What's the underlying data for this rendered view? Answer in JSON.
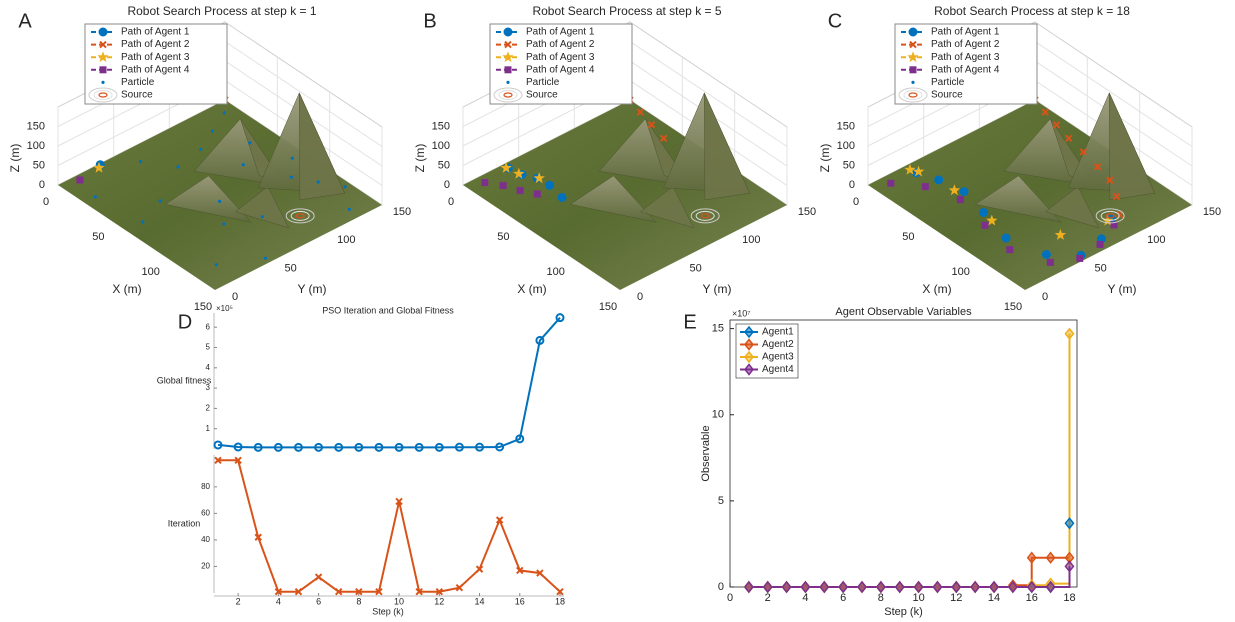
{
  "chart_data": [
    {
      "type": "scatter3d",
      "label": "A",
      "title": "Robot Search Process at step k = 1",
      "xlabel": "X (m)",
      "ylabel": "Y (m)",
      "zlabel": "Z (m)",
      "xlim": [
        0,
        150
      ],
      "ylim": [
        0,
        150
      ],
      "zlim": [
        0,
        200
      ],
      "xticks": [
        0,
        50,
        100,
        150
      ],
      "yticks": [
        0,
        50,
        100,
        150
      ],
      "zticks": [
        0,
        50,
        100,
        150
      ],
      "series": [
        {
          "name": "Path of Agent 1",
          "color": "#0072BD",
          "marker": "circle",
          "x": [
            1
          ],
          "y": [
            37
          ]
        },
        {
          "name": "Path of Agent 2",
          "color": "#D95319",
          "marker": "x",
          "x": [
            0
          ],
          "y": [
            150
          ]
        },
        {
          "name": "Path of Agent 3",
          "color": "#EDB120",
          "marker": "star",
          "x": [
            3
          ],
          "y": [
            34
          ]
        },
        {
          "name": "Path of Agent 4",
          "color": "#7E2F8E",
          "marker": "square",
          "x": [
            5
          ],
          "y": [
            15
          ]
        },
        {
          "name": "Particle",
          "color": "#0072BD",
          "marker": "dot",
          "x": [
            10,
            20,
            30,
            45,
            60,
            75,
            90,
            105,
            120,
            140,
            15,
            35,
            55,
            80,
            100,
            130,
            145,
            25,
            65,
            110
          ],
          "y": [
            140,
            120,
            100,
            130,
            110,
            140,
            125,
            135,
            145,
            130,
            60,
            75,
            40,
            70,
            55,
            20,
            50,
            10,
            15,
            80
          ]
        },
        {
          "name": "Source",
          "color": "#D95319",
          "marker": "source",
          "x": [
            125
          ],
          "y": [
            100
          ]
        }
      ]
    },
    {
      "type": "scatter3d",
      "label": "B",
      "title": "Robot Search Process at step k = 5",
      "xlabel": "X (m)",
      "ylabel": "Y (m)",
      "zlabel": "Z (m)",
      "xlim": [
        0,
        150
      ],
      "ylim": [
        0,
        150
      ],
      "zlim": [
        0,
        200
      ],
      "xticks": [
        0,
        50,
        100,
        150
      ],
      "yticks": [
        0,
        50,
        100,
        150
      ],
      "zticks": [
        0,
        50,
        100,
        150
      ],
      "series": [
        {
          "name": "Path of Agent 1",
          "color": "#0072BD",
          "marker": "circle",
          "x": [
            5,
            16,
            25,
            36,
            51
          ],
          "y": [
            36,
            38,
            43,
            44,
            41
          ]
        },
        {
          "name": "Path of Agent 2",
          "color": "#D95319",
          "marker": "x",
          "x": [
            0,
            14,
            29,
            45
          ],
          "y": [
            150,
            146,
            142,
            138
          ]
        },
        {
          "name": "Path of Agent 3",
          "color": "#EDB120",
          "marker": "star",
          "x": [
            4,
            14,
            26
          ],
          "y": [
            35,
            37,
            44
          ]
        },
        {
          "name": "Path of Agent 4",
          "color": "#7E2F8E",
          "marker": "square",
          "x": [
            7,
            17,
            28,
            38
          ],
          "y": [
            13,
            20,
            25,
            31
          ]
        },
        {
          "name": "Particle",
          "color": "#0072BD",
          "marker": "dot",
          "x": [],
          "y": []
        },
        {
          "name": "Source",
          "color": "#D95319",
          "marker": "source",
          "x": [
            125
          ],
          "y": [
            100
          ]
        }
      ]
    },
    {
      "type": "scatter3d",
      "label": "C",
      "title": "Robot Search Process at step k = 18",
      "xlabel": "X (m)",
      "ylabel": "Y (m)",
      "zlabel": "Z (m)",
      "xlim": [
        0,
        150
      ],
      "ylim": [
        0,
        150
      ],
      "zlim": [
        0,
        200
      ],
      "xticks": [
        0,
        50,
        100,
        150
      ],
      "yticks": [
        0,
        50,
        100,
        150
      ],
      "zticks": [
        0,
        50,
        100,
        150
      ],
      "series": [
        {
          "name": "Path of Agent 1",
          "color": "#0072BD",
          "marker": "circle",
          "x": [
            10,
            25,
            45,
            70,
            100,
            130,
            145,
            140,
            128
          ],
          "y": [
            34,
            40,
            44,
            38,
            30,
            38,
            55,
            78,
            98
          ]
        },
        {
          "name": "Path of Agent 2",
          "color": "#D95319",
          "marker": "x",
          "x": [
            0,
            14,
            29,
            45,
            62,
            80,
            96,
            112,
            128
          ],
          "y": [
            150,
            146,
            142,
            138,
            135,
            131,
            127,
            118,
            106
          ]
        },
        {
          "name": "Path of Agent 3",
          "color": "#EDB120",
          "marker": "star",
          "x": [
            5,
            10,
            40,
            80,
            120,
            128
          ],
          "y": [
            33,
            36,
            40,
            36,
            60,
            95
          ]
        },
        {
          "name": "Path of Agent 4",
          "color": "#7E2F8E",
          "marker": "square",
          "x": [
            8,
            25,
            50,
            81,
            111,
            138,
            147,
            144,
            134
          ],
          "y": [
            13,
            28,
            36,
            29,
            23,
            34,
            52,
            73,
            95
          ]
        },
        {
          "name": "Particle",
          "color": "#0072BD",
          "marker": "dot",
          "x": [],
          "y": []
        },
        {
          "name": "Source",
          "color": "#D95319",
          "marker": "source",
          "x": [
            125
          ],
          "y": [
            100
          ]
        }
      ]
    },
    {
      "type": "stacked_line",
      "label": "D",
      "title": "PSO Iteration and Global Fitness",
      "xlabel": "Step (k)",
      "x": [
        1,
        2,
        3,
        4,
        5,
        6,
        7,
        8,
        9,
        10,
        11,
        12,
        13,
        14,
        15,
        16,
        17,
        18
      ],
      "xlim": [
        1,
        18
      ],
      "xticks": [
        2,
        4,
        6,
        8,
        10,
        12,
        14,
        16,
        18
      ],
      "series": [
        {
          "name": "Global fitness",
          "color": "#0072BD",
          "marker": "hollowcircle",
          "y_exponent": "×10⁵",
          "ylim": [
            0,
            670000
          ],
          "yticks": [
            {
              "value": 100000,
              "label": "1"
            },
            {
              "value": 200000,
              "label": "2"
            },
            {
              "value": 300000,
              "label": "3"
            },
            {
              "value": 400000,
              "label": "4"
            },
            {
              "value": 500000,
              "label": "5"
            },
            {
              "value": 600000,
              "label": "6"
            }
          ],
          "values": [
            20000,
            10000,
            8000,
            8000,
            8000,
            8000,
            8000,
            8000,
            8000,
            8000,
            8000,
            8000,
            9000,
            9000,
            10000,
            50000,
            535000,
            647000
          ]
        },
        {
          "name": "Iteration",
          "color": "#D95319",
          "marker": "x",
          "ylim": [
            0,
            104
          ],
          "yticks": [
            20,
            40,
            60,
            80
          ],
          "values": [
            100,
            100,
            42,
            1,
            1,
            12,
            1,
            1,
            1,
            69,
            1,
            1,
            4,
            18,
            55,
            17,
            15,
            1
          ]
        }
      ]
    },
    {
      "type": "stairs",
      "label": "E",
      "title": "Agent Observable Variables",
      "xlabel": "Step (k)",
      "ylabel": "Observable",
      "y_exponent": "×10⁷",
      "x": [
        1,
        2,
        3,
        4,
        5,
        6,
        7,
        8,
        9,
        10,
        11,
        12,
        13,
        14,
        15,
        16,
        17,
        18
      ],
      "xlim": [
        0,
        18.4
      ],
      "xticks": [
        0,
        2,
        4,
        6,
        8,
        10,
        12,
        14,
        16,
        18
      ],
      "ylim": [
        0,
        155000000
      ],
      "yticks": [
        {
          "value": 0,
          "label": "0"
        },
        {
          "value": 50000000,
          "label": "5"
        },
        {
          "value": 100000000,
          "label": "10"
        },
        {
          "value": 150000000,
          "label": "15"
        }
      ],
      "legend": "upper left",
      "series": [
        {
          "name": "Agent1",
          "color": "#0072BD",
          "values": [
            0,
            0,
            0,
            0,
            0,
            0,
            0,
            0,
            0,
            0,
            0,
            0,
            0,
            0,
            0,
            0,
            0,
            37000000
          ]
        },
        {
          "name": "Agent2",
          "color": "#D95319",
          "values": [
            0,
            0,
            0,
            0,
            0,
            0,
            0,
            0,
            0,
            0,
            0,
            0,
            0,
            0,
            1000000,
            17000000,
            17000000,
            17000000
          ]
        },
        {
          "name": "Agent3",
          "color": "#EDB120",
          "values": [
            0,
            0,
            0,
            0,
            0,
            0,
            0,
            0,
            0,
            0,
            0,
            0,
            0,
            0,
            0,
            1000000,
            2000000,
            147000000
          ]
        },
        {
          "name": "Agent4",
          "color": "#7E2F8E",
          "values": [
            0,
            0,
            0,
            0,
            0,
            0,
            0,
            0,
            0,
            0,
            0,
            0,
            0,
            0,
            0,
            0,
            0,
            12000000
          ]
        }
      ]
    }
  ]
}
